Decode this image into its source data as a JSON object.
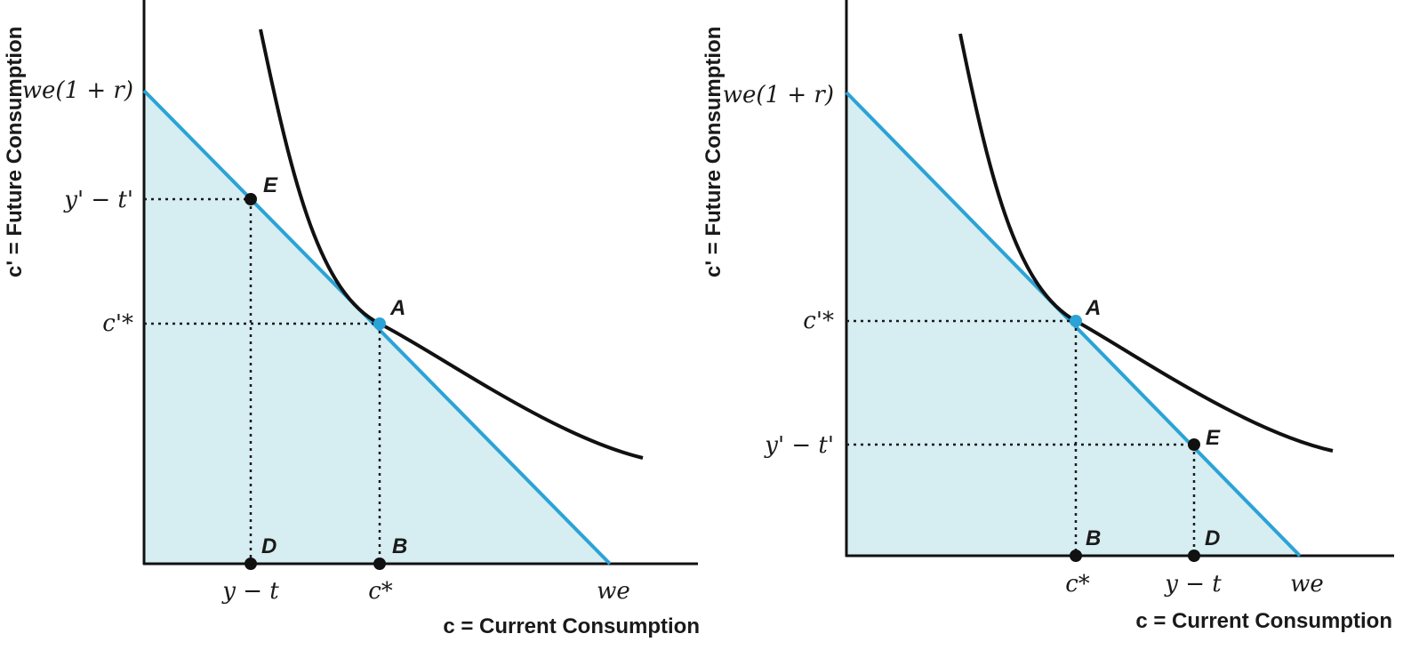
{
  "colors": {
    "budget_line": "#2ba3d6",
    "feasible_fill": "#d6edf1",
    "curve": "#111111",
    "axis": "#111111"
  },
  "panels": [
    {
      "x_axis_label": "c = Current Consumption",
      "y_axis_label": "c' = Future Consumption",
      "y_ticks": {
        "top": "we(1 + r)",
        "e": "y' − t'",
        "a": "c'*"
      },
      "x_ticks": {
        "d": "y − t",
        "b": "c*",
        "end": "we"
      },
      "points": {
        "e": "E",
        "a": "A",
        "d": "D",
        "b": "B"
      }
    },
    {
      "x_axis_label": "c = Current Consumption",
      "y_axis_label": "c' = Future Consumption",
      "y_ticks": {
        "top": "we(1 + r)",
        "a": "c'*",
        "e": "y' − t'"
      },
      "x_ticks": {
        "b": "c*",
        "d": "y − t",
        "end": "we"
      },
      "points": {
        "a": "A",
        "e": "E",
        "b": "B",
        "d": "D"
      }
    }
  ]
}
